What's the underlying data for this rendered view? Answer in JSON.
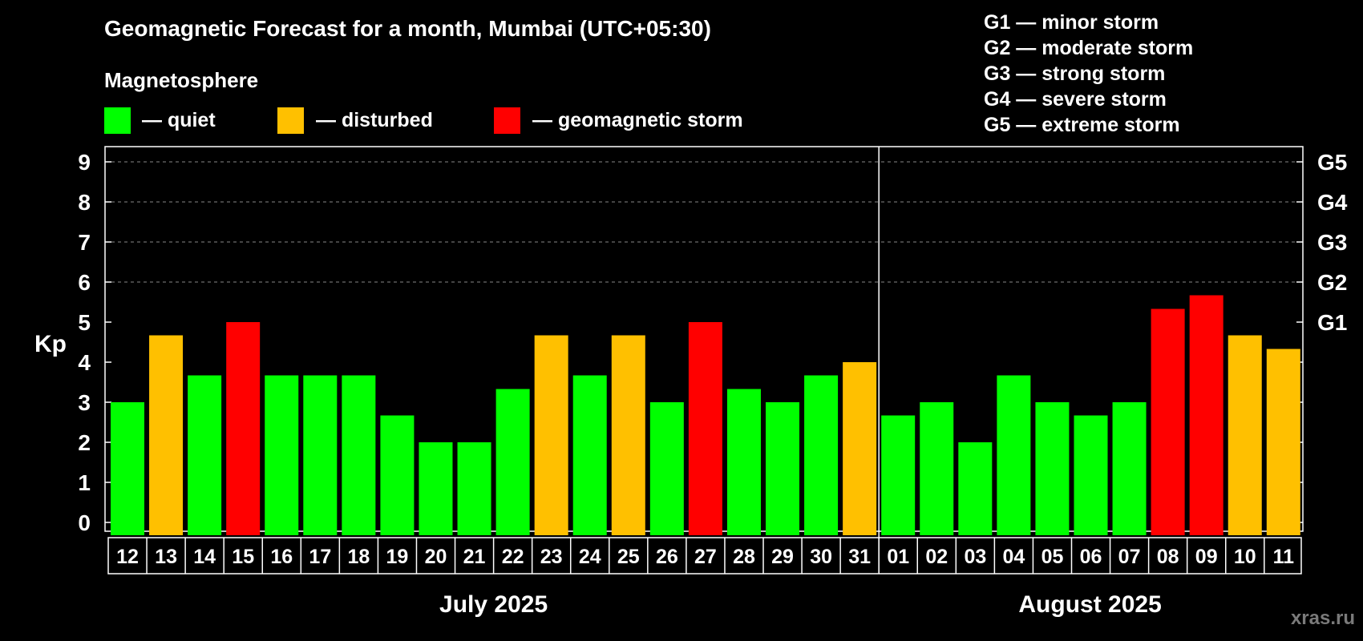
{
  "title": "Geomagnetic Forecast for a month, Mumbai (UTC+05:30)",
  "subtitle": "Magnetosphere",
  "watermark": "xras.ru",
  "colors": {
    "quiet": "#00ff00",
    "disturbed": "#ffc000",
    "storm": "#ff0000",
    "background": "#000000"
  },
  "legend": [
    {
      "label": "— quiet",
      "color": "#00ff00"
    },
    {
      "label": "— disturbed",
      "color": "#ffc000"
    },
    {
      "label": "— geomagnetic storm",
      "color": "#ff0000"
    }
  ],
  "g_legend": [
    "G1 — minor storm",
    "G2 — moderate storm",
    "G3 — strong storm",
    "G4 — severe storm",
    "G5 — extreme storm"
  ],
  "chart_data": {
    "type": "bar",
    "ylabel": "Kp",
    "ylim": [
      0,
      9
    ],
    "yticks": [
      "0",
      "1",
      "2",
      "3",
      "4",
      "5",
      "6",
      "7",
      "8",
      "9"
    ],
    "right_axis_labels": [
      {
        "kp": 5,
        "label": "G1"
      },
      {
        "kp": 6,
        "label": "G2"
      },
      {
        "kp": 7,
        "label": "G3"
      },
      {
        "kp": 8,
        "label": "G4"
      },
      {
        "kp": 9,
        "label": "G5"
      }
    ],
    "grid": "dashed at Kp 6-9",
    "months": [
      {
        "label": "July 2025",
        "days": [
          "12",
          "13",
          "14",
          "15",
          "16",
          "17",
          "18",
          "19",
          "20",
          "21",
          "22",
          "23",
          "24",
          "25",
          "26",
          "27",
          "28",
          "29",
          "30",
          "31"
        ]
      },
      {
        "label": "August 2025",
        "days": [
          "01",
          "02",
          "03",
          "04",
          "05",
          "06",
          "07",
          "08",
          "09",
          "10",
          "11"
        ]
      }
    ],
    "categories": [
      "12",
      "13",
      "14",
      "15",
      "16",
      "17",
      "18",
      "19",
      "20",
      "21",
      "22",
      "23",
      "24",
      "25",
      "26",
      "27",
      "28",
      "29",
      "30",
      "31",
      "01",
      "02",
      "03",
      "04",
      "05",
      "06",
      "07",
      "08",
      "09",
      "10",
      "11"
    ],
    "values": [
      3.0,
      4.67,
      3.67,
      5.0,
      3.67,
      3.67,
      3.67,
      2.67,
      2.0,
      2.0,
      3.33,
      4.67,
      3.67,
      4.67,
      3.0,
      5.0,
      3.33,
      3.0,
      3.67,
      4.0,
      2.67,
      3.0,
      2.0,
      3.67,
      3.0,
      2.67,
      3.0,
      5.33,
      5.67,
      4.67,
      4.33
    ],
    "status": [
      "quiet",
      "disturbed",
      "quiet",
      "storm",
      "quiet",
      "quiet",
      "quiet",
      "quiet",
      "quiet",
      "quiet",
      "quiet",
      "disturbed",
      "quiet",
      "disturbed",
      "quiet",
      "storm",
      "quiet",
      "quiet",
      "quiet",
      "disturbed",
      "quiet",
      "quiet",
      "quiet",
      "quiet",
      "quiet",
      "quiet",
      "quiet",
      "storm",
      "storm",
      "disturbed",
      "disturbed"
    ]
  }
}
